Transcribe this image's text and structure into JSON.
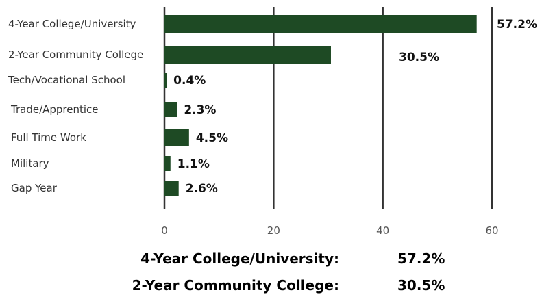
{
  "chart_data": {
    "type": "bar",
    "orientation": "horizontal",
    "categories": [
      "4-Year College/University",
      "2-Year Community College",
      "Tech/Vocational School",
      "Trade/Apprentice",
      "Full Time Work",
      "Military",
      "Gap Year"
    ],
    "values": [
      57.2,
      30.5,
      0.4,
      2.3,
      4.5,
      1.1,
      2.6
    ],
    "data_labels": [
      "57.2%",
      "30.5%",
      "0.4%",
      "2.3%",
      "4.5%",
      "1.1%",
      "2.6%"
    ],
    "xticks": [
      "0",
      "20",
      "40",
      "60"
    ],
    "xlim": [
      0,
      60
    ],
    "grid": "vertical",
    "bar_color": "#1e4a24",
    "grid_color": "#333333"
  },
  "summary": [
    {
      "label": "4-Year College/University:",
      "value": "57.2%"
    },
    {
      "label": "2-Year Community College:",
      "value": "30.5%"
    }
  ]
}
